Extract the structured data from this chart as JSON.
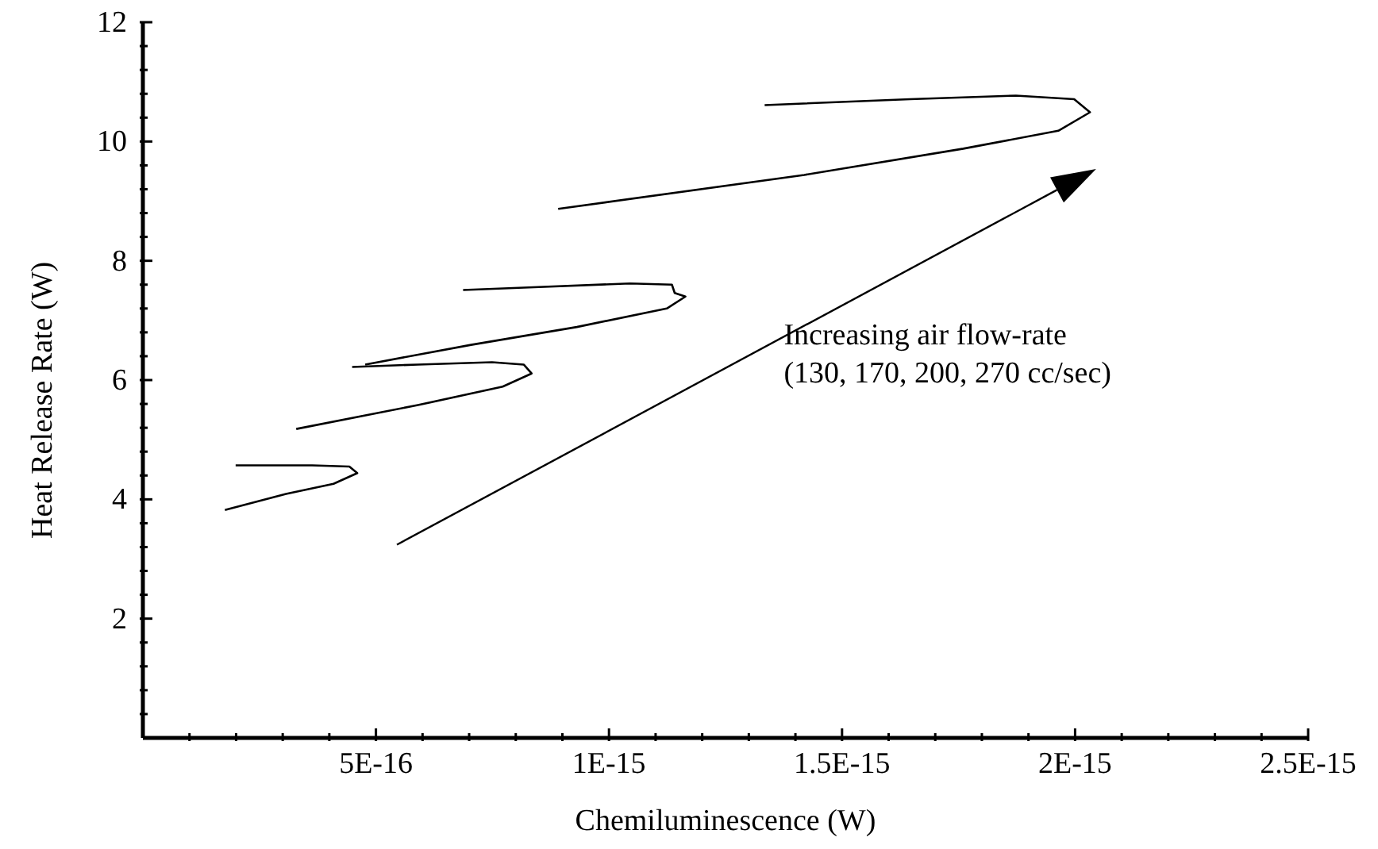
{
  "chart_data": {
    "type": "line",
    "xlabel": "Chemiluminescence (W)",
    "ylabel": "Heat Release Rate (W)",
    "xlim": [
      0,
      2.5e-15
    ],
    "ylim": [
      0,
      12
    ],
    "xticks": [
      {
        "value": 1e-16,
        "label": null
      },
      {
        "value": 2e-16,
        "label": null
      },
      {
        "value": 3e-16,
        "label": null
      },
      {
        "value": 4e-16,
        "label": null
      },
      {
        "value": 5e-16,
        "label": "5E-16"
      },
      {
        "value": 6e-16,
        "label": null
      },
      {
        "value": 7e-16,
        "label": null
      },
      {
        "value": 8e-16,
        "label": null
      },
      {
        "value": 9e-16,
        "label": null
      },
      {
        "value": 1e-15,
        "label": "1E-15"
      },
      {
        "value": 1.1e-15,
        "label": null
      },
      {
        "value": 1.2e-15,
        "label": null
      },
      {
        "value": 1.3e-15,
        "label": null
      },
      {
        "value": 1.4e-15,
        "label": null
      },
      {
        "value": 1.5e-15,
        "label": "1.5E-15"
      },
      {
        "value": 1.6e-15,
        "label": null
      },
      {
        "value": 1.7e-15,
        "label": null
      },
      {
        "value": 1.8e-15,
        "label": null
      },
      {
        "value": 1.9e-15,
        "label": null
      },
      {
        "value": 2e-15,
        "label": "2E-15"
      },
      {
        "value": 2.1e-15,
        "label": null
      },
      {
        "value": 2.2e-15,
        "label": null
      },
      {
        "value": 2.3e-15,
        "label": null
      },
      {
        "value": 2.4e-15,
        "label": null
      },
      {
        "value": 2.5e-15,
        "label": "2.5E-15"
      }
    ],
    "yticks": [
      {
        "value": 0.4,
        "label": null
      },
      {
        "value": 0.8,
        "label": null
      },
      {
        "value": 1.2,
        "label": null
      },
      {
        "value": 1.6,
        "label": null
      },
      2,
      {
        "value": 2.4,
        "label": null
      },
      {
        "value": 2.8,
        "label": null
      },
      {
        "value": 3.2,
        "label": null
      },
      {
        "value": 3.6,
        "label": null
      },
      4,
      {
        "value": 4.4,
        "label": null
      },
      {
        "value": 4.8,
        "label": null
      },
      {
        "value": 5.2,
        "label": null
      },
      {
        "value": 5.6,
        "label": null
      },
      6,
      {
        "value": 6.4,
        "label": null
      },
      {
        "value": 6.8,
        "label": null
      },
      {
        "value": 7.2,
        "label": null
      },
      {
        "value": 7.6,
        "label": null
      },
      8,
      {
        "value": 8.4,
        "label": null
      },
      {
        "value": 8.8,
        "label": null
      },
      {
        "value": 9.2,
        "label": null
      },
      {
        "value": 9.6,
        "label": null
      },
      10,
      {
        "value": 10.4,
        "label": null
      },
      {
        "value": 10.8,
        "label": null
      },
      {
        "value": 11.2,
        "label": null
      },
      {
        "value": 11.6,
        "label": null
      },
      12
    ],
    "grid": false,
    "legend": false,
    "marker": "none",
    "line_style": "solid",
    "annotations": [
      "Increasing air flow-rate",
      "(130, 170, 200, 270 cc/sec)"
    ],
    "series": [
      {
        "color": "#000000",
        "x": [
          1.76e-16,
          3.07e-16,
          4.09e-16,
          4.6e-16,
          4.43e-16,
          3.63e-16,
          1.99e-16
        ],
        "values": [
          3.82,
          4.09,
          4.26,
          4.44,
          4.55,
          4.57,
          4.57
        ]
      },
      {
        "color": "#000000",
        "x": [
          3.29e-16,
          5.9e-16,
          7.72e-16,
          8.34e-16,
          8.17e-16,
          7.49e-16,
          5.9e-16,
          4.49e-16
        ],
        "values": [
          5.18,
          5.58,
          5.89,
          6.11,
          6.26,
          6.3,
          6.26,
          6.22
        ]
      },
      {
        "color": "#000000",
        "x": [
          4.77e-16,
          7.04e-16,
          9.31e-16,
          1.124e-15,
          1.164e-15,
          1.141e-15,
          1.135e-15,
          1.045e-15,
          8.17e-16,
          6.87e-16
        ],
        "values": [
          6.26,
          6.59,
          6.89,
          7.2,
          7.4,
          7.46,
          7.6,
          7.62,
          7.55,
          7.51
        ]
      },
      {
        "color": "#000000",
        "x": [
          8.91e-16,
          1.419e-15,
          1.76e-15,
          1.964e-15,
          2.032e-15,
          1.998e-15,
          1.873e-15,
          1.646e-15,
          1.334e-15
        ],
        "values": [
          8.87,
          9.44,
          9.88,
          10.18,
          10.49,
          10.71,
          10.77,
          10.71,
          10.61
        ]
      }
    ]
  }
}
